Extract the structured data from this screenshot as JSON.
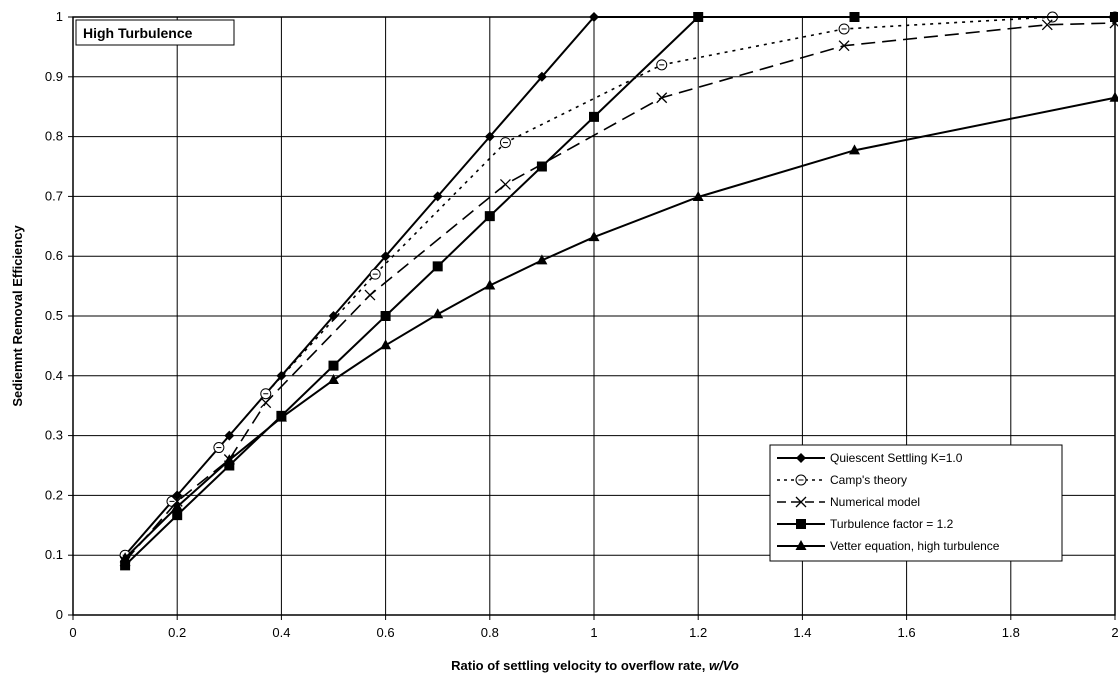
{
  "chart_data": {
    "type": "line",
    "title": "",
    "annotation": "High Turbulence",
    "xlabel_prefix": "Ratio of settling velocity to overflow rate, ",
    "xlabel_var": "w/Vo",
    "ylabel": "Sediemnt Removal Efficiency",
    "xlim": [
      0,
      2
    ],
    "ylim": [
      0,
      1
    ],
    "x_ticks": [
      0,
      0.2,
      0.4,
      0.6,
      0.8,
      1,
      1.2,
      1.4,
      1.6,
      1.8,
      2
    ],
    "y_ticks": [
      0,
      0.1,
      0.2,
      0.3,
      0.4,
      0.5,
      0.6,
      0.7,
      0.8,
      0.9,
      1
    ],
    "x_tick_labels": [
      "0",
      "0.2",
      "0.4",
      "0.6",
      "0.8",
      "1",
      "1.2",
      "1.4",
      "1.6",
      "1.8",
      "2"
    ],
    "y_tick_labels": [
      "0",
      "0.1",
      "0.2",
      "0.3",
      "0.4",
      "0.5",
      "0.6",
      "0.7",
      "0.8",
      "0.9",
      "1"
    ],
    "grid": true,
    "legend_position": "bottom-right",
    "series": [
      {
        "name": "Quiescent Settling K=1.0",
        "marker": "diamond",
        "dash": "solid",
        "x": [
          0.1,
          0.2,
          0.3,
          0.4,
          0.5,
          0.6,
          0.7,
          0.8,
          0.9,
          1.0,
          1.2,
          1.5,
          2.0
        ],
        "y": [
          0.1,
          0.2,
          0.3,
          0.4,
          0.5,
          0.6,
          0.7,
          0.8,
          0.9,
          1.0,
          1.0,
          1.0,
          1.0
        ]
      },
      {
        "name": "Camp's theory",
        "marker": "circle-open",
        "dash": "dotted",
        "x": [
          0.1,
          0.19,
          0.28,
          0.37,
          0.58,
          0.83,
          1.13,
          1.48,
          1.88,
          2.0
        ],
        "y": [
          0.1,
          0.19,
          0.28,
          0.37,
          0.57,
          0.79,
          0.92,
          0.98,
          1.0,
          1.0
        ]
      },
      {
        "name": "Numerical model",
        "marker": "x",
        "dash": "dashed",
        "x": [
          0.1,
          0.2,
          0.3,
          0.37,
          0.57,
          0.83,
          1.13,
          1.48,
          1.87,
          2.0
        ],
        "y": [
          0.09,
          0.19,
          0.26,
          0.355,
          0.535,
          0.72,
          0.865,
          0.952,
          0.987,
          0.99
        ]
      },
      {
        "name": "Turbulence factor = 1.2",
        "marker": "square",
        "dash": "solid",
        "x": [
          0.1,
          0.2,
          0.3,
          0.4,
          0.5,
          0.6,
          0.7,
          0.8,
          0.9,
          1.0,
          1.2,
          1.5,
          2.0
        ],
        "y": [
          0.083,
          0.167,
          0.25,
          0.333,
          0.417,
          0.5,
          0.583,
          0.667,
          0.75,
          0.833,
          1.0,
          1.0,
          1.0
        ]
      },
      {
        "name": "Vetter equation, high turbulence",
        "marker": "triangle",
        "dash": "solid",
        "x": [
          0.1,
          0.2,
          0.3,
          0.4,
          0.5,
          0.6,
          0.7,
          0.8,
          0.9,
          1.0,
          1.2,
          1.5,
          2.0
        ],
        "y": [
          0.095,
          0.181,
          0.259,
          0.33,
          0.393,
          0.451,
          0.503,
          0.551,
          0.593,
          0.632,
          0.699,
          0.777,
          0.865
        ]
      }
    ]
  }
}
